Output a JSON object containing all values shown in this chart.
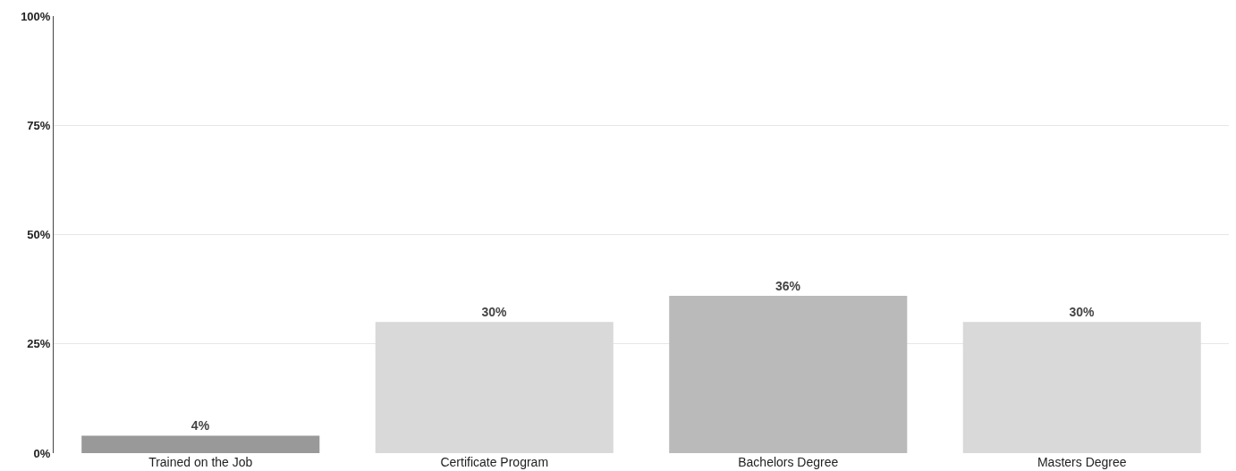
{
  "chart_data": {
    "type": "bar",
    "categories": [
      "Trained on the Job",
      "Certificate Program",
      "Bachelors Degree",
      "Masters Degree"
    ],
    "values": [
      4,
      30,
      36,
      30
    ],
    "colors": [
      "#999999",
      "#d9d9d9",
      "#bababa",
      "#d9d9d9"
    ],
    "value_labels": [
      "4%",
      "30%",
      "36%",
      "30%"
    ],
    "ylim": [
      0,
      100
    ],
    "yticks": [
      {
        "value": 0,
        "label": "0%"
      },
      {
        "value": 25,
        "label": "25%"
      },
      {
        "value": 50,
        "label": "50%"
      },
      {
        "value": 75,
        "label": "75%"
      },
      {
        "value": 100,
        "label": "100%"
      }
    ],
    "grid": "y"
  }
}
